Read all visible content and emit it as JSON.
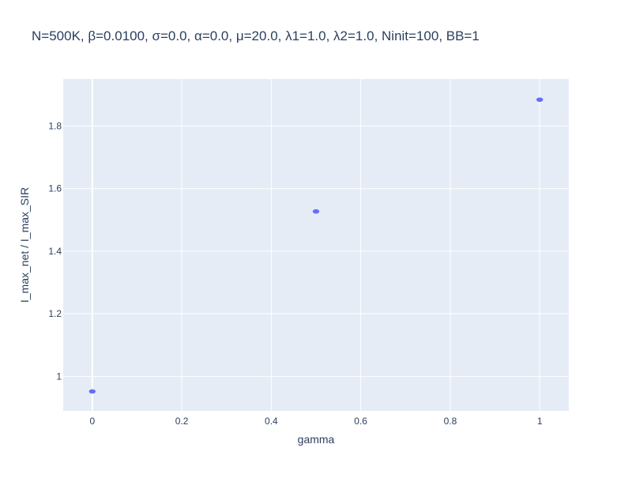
{
  "chart_data": {
    "type": "scatter",
    "title": "N=500K, β=0.0100, σ=0.0, α=0.0, μ=20.0, λ1=1.0, λ2=1.0, Ninit=100, BB=1",
    "xlabel": "gamma",
    "ylabel": "I_max_net / I_max_SIR",
    "xlim": [
      -0.065,
      1.065
    ],
    "ylim": [
      0.89,
      1.95
    ],
    "x_ticks": [
      0,
      0.2,
      0.4,
      0.6,
      0.8,
      1
    ],
    "x_tick_labels": [
      "0",
      "0.2",
      "0.4",
      "0.6",
      "0.8",
      "1"
    ],
    "y_ticks": [
      1,
      1.2,
      1.4,
      1.6,
      1.8
    ],
    "y_tick_labels": [
      "1",
      "1.2",
      "1.4",
      "1.6",
      "1.8"
    ],
    "grid": true,
    "series": [
      {
        "x": [
          0,
          0.5,
          1
        ],
        "y": [
          0.952,
          1.527,
          1.884
        ],
        "color": "#636efa"
      }
    ]
  },
  "colors": {
    "plot_background": "#e5ecf6",
    "grid": "#ffffff",
    "text": "#2a3f5f",
    "marker": "#636efa"
  }
}
